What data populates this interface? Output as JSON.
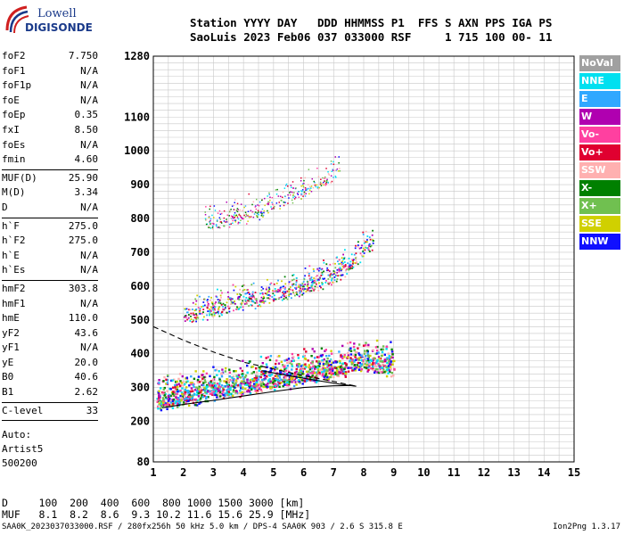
{
  "logo": {
    "line1": "Lowell",
    "line2": "DIGISONDE"
  },
  "header": {
    "line1": "Station YYYY DAY   DDD HHMMSS P1  FFS S AXN PPS IGA PS",
    "line2": "SaoLuis 2023 Feb06 037 033000 RSF     1 715 100 00- 11"
  },
  "params_group1": [
    {
      "label": "foF2",
      "value": "7.750"
    },
    {
      "label": "foF1",
      "value": "N/A"
    },
    {
      "label": "foF1p",
      "value": "N/A"
    },
    {
      "label": "foE",
      "value": "N/A"
    },
    {
      "label": "foEp",
      "value": "0.35"
    },
    {
      "label": "fxI",
      "value": "8.50"
    },
    {
      "label": "foEs",
      "value": "N/A"
    },
    {
      "label": "fmin",
      "value": "4.60"
    }
  ],
  "params_group2": [
    {
      "label": "MUF(D)",
      "value": "25.90"
    },
    {
      "label": "M(D)",
      "value": "3.34"
    },
    {
      "label": "D",
      "value": "N/A"
    }
  ],
  "params_group3": [
    {
      "label": "h`F",
      "value": "275.0"
    },
    {
      "label": "h`F2",
      "value": "275.0"
    },
    {
      "label": "h`E",
      "value": "N/A"
    },
    {
      "label": "h`Es",
      "value": "N/A"
    }
  ],
  "params_group4": [
    {
      "label": "hmF2",
      "value": "303.8"
    },
    {
      "label": "hmF1",
      "value": "N/A"
    },
    {
      "label": "hmE",
      "value": "110.0"
    },
    {
      "label": "yF2",
      "value": "43.6"
    },
    {
      "label": "yF1",
      "value": "N/A"
    },
    {
      "label": "yE",
      "value": "20.0"
    },
    {
      "label": "B0",
      "value": "40.6"
    },
    {
      "label": "B1",
      "value": "2.62"
    }
  ],
  "params_group5": [
    {
      "label": "C-level",
      "value": "33"
    }
  ],
  "auto": {
    "line1": "Auto:",
    "line2": "Artist5",
    "line3": "500200"
  },
  "legend": [
    {
      "label": "NoVal",
      "color": "#a0a0a0"
    },
    {
      "label": "NNE",
      "color": "#00e0f0"
    },
    {
      "label": "E",
      "color": "#30a8ff"
    },
    {
      "label": "W",
      "color": "#b000b0"
    },
    {
      "label": "Vo-",
      "color": "#ff40a0"
    },
    {
      "label": "Vo+",
      "color": "#e00030"
    },
    {
      "label": "SSW",
      "color": "#ffb0b0"
    },
    {
      "label": "X-",
      "color": "#008000"
    },
    {
      "label": "X+",
      "color": "#70c050"
    },
    {
      "label": "SSE",
      "color": "#d0d000"
    },
    {
      "label": "NNW",
      "color": "#1010ff"
    }
  ],
  "muf_table": {
    "row1": "D     100  200  400  600  800 1000 1500 3000 [km]",
    "row2": "MUF   8.1  8.2  8.6  9.3 10.2 11.6 15.6 25.9 [MHz]"
  },
  "footer": {
    "text": "SAA0K_2023037033000.RSF / 280fx256h 50 kHz 5.0 km / DPS-4 SAA0K 903 / 2.6 S 315.8 E",
    "version": "Ion2Png 1.3.17"
  },
  "chart_data": {
    "type": "scatter",
    "xlim": [
      1,
      15
    ],
    "ylim": [
      80,
      1280
    ],
    "x_ticks": [
      1,
      2,
      3,
      4,
      5,
      6,
      7,
      8,
      9,
      10,
      11,
      12,
      13,
      14,
      15
    ],
    "y_ticks": [
      80,
      200,
      300,
      400,
      500,
      600,
      700,
      800,
      900,
      1000,
      1100,
      1280
    ],
    "grid": true,
    "legend_position": "right",
    "traces": {
      "F_first_hop": [
        [
          1.1,
          250
        ],
        [
          1.5,
          258
        ],
        [
          2,
          265
        ],
        [
          2.5,
          272
        ],
        [
          3,
          280
        ],
        [
          3.5,
          290
        ],
        [
          4,
          298
        ],
        [
          4.5,
          305
        ],
        [
          5,
          313
        ],
        [
          5.5,
          320
        ],
        [
          6,
          328
        ],
        [
          6.5,
          336
        ],
        [
          7,
          345
        ],
        [
          7.5,
          355
        ],
        [
          8,
          365
        ],
        [
          8.5,
          360
        ],
        [
          9,
          355
        ]
      ],
      "F_second_hop": [
        [
          2,
          495
        ],
        [
          2.5,
          510
        ],
        [
          3,
          525
        ],
        [
          3.5,
          535
        ],
        [
          4,
          545
        ],
        [
          4.5,
          555
        ],
        [
          5,
          565
        ],
        [
          5.5,
          575
        ],
        [
          6,
          590
        ],
        [
          6.5,
          605
        ],
        [
          7,
          620
        ],
        [
          7.5,
          650
        ],
        [
          8,
          700
        ],
        [
          8.3,
          720
        ]
      ],
      "F_third_hop": [
        [
          2.7,
          770
        ],
        [
          3,
          780
        ],
        [
          3.5,
          790
        ],
        [
          4,
          800
        ],
        [
          4.5,
          815
        ],
        [
          5,
          835
        ],
        [
          5.5,
          855
        ],
        [
          6,
          875
        ],
        [
          6.5,
          895
        ],
        [
          7,
          920
        ],
        [
          7.2,
          940
        ]
      ]
    },
    "profile_solid": [
      [
        1.3,
        240
      ],
      [
        2,
        250
      ],
      [
        3,
        262
      ],
      [
        4,
        275
      ],
      [
        5,
        288
      ],
      [
        6,
        300
      ],
      [
        7,
        305
      ],
      [
        7.6,
        306
      ],
      [
        7.75,
        303.8
      ]
    ],
    "profile_dashed": [
      [
        1,
        480
      ],
      [
        2,
        440
      ],
      [
        3,
        405
      ],
      [
        4,
        375
      ],
      [
        5,
        355
      ],
      [
        6,
        335
      ],
      [
        7,
        318
      ],
      [
        7.75,
        303.8
      ]
    ],
    "profile_upper": [
      [
        4.6,
        350
      ],
      [
        5.5,
        335
      ],
      [
        6.5,
        320
      ],
      [
        7.2,
        310
      ],
      [
        7.75,
        303.8
      ]
    ]
  }
}
